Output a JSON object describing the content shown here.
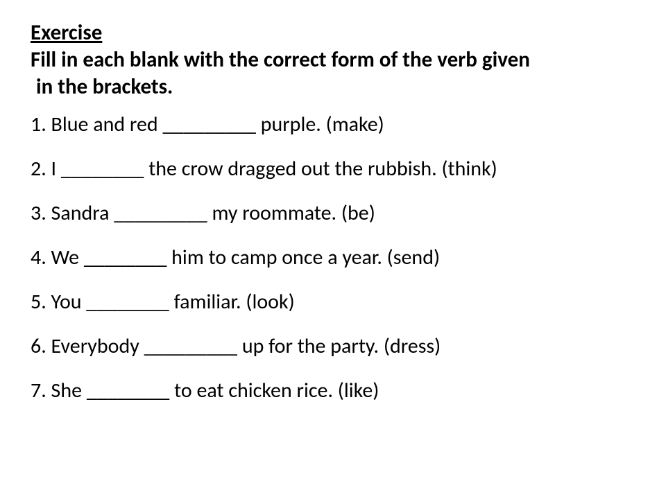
{
  "title": "Exercise",
  "instruction_line1": "Fill in each blank with the correct form of the verb given",
  "instruction_line2": "in the brackets.",
  "heading_fontsize_pt": 23,
  "heading_fontweight": "bold",
  "body_fontsize_pt": 22,
  "text_color": "#000000",
  "background_color": "#ffffff",
  "questions": [
    {
      "n": "1",
      "text": "1. Blue and red _________  purple. (make)"
    },
    {
      "n": "2",
      "text": "2. I ________  the crow dragged out the rubbish. (think)"
    },
    {
      "n": "3",
      "text": "3. Sandra _________  my roommate. (be)"
    },
    {
      "n": "4",
      "text": "4. We ________  him to camp once a year. (send)"
    },
    {
      "n": "5",
      "text": "5. You ________  familiar. (look)"
    },
    {
      "n": "6",
      "text": "6. Everybody _________  up for the party. (dress)"
    },
    {
      "n": "7",
      "text": "7. She ________  to eat chicken rice. (like)"
    }
  ]
}
